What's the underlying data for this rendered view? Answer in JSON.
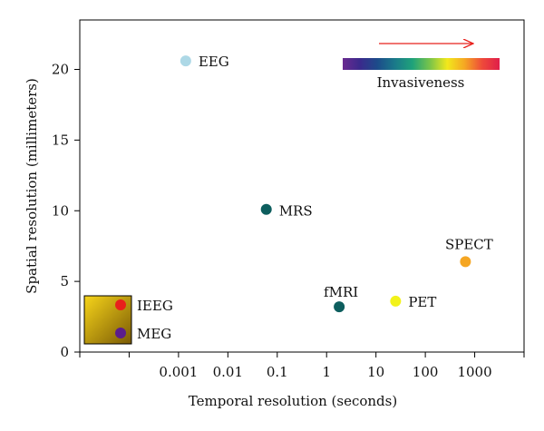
{
  "chart_data": {
    "type": "scatter",
    "title": "",
    "xlabel": "Temporal resolution (seconds)",
    "ylabel": "Spatial resolution (millimeters)",
    "x_scale": "log",
    "x_range": [
      1e-05,
      10000
    ],
    "x_ticks": [
      {
        "value": 0.001,
        "label": "0.001"
      },
      {
        "value": 0.01,
        "label": "0.01"
      },
      {
        "value": 0.1,
        "label": "0.1"
      },
      {
        "value": 1,
        "label": "1"
      },
      {
        "value": 10,
        "label": "10"
      },
      {
        "value": 100,
        "label": "100"
      },
      {
        "value": 1000,
        "label": "1000"
      }
    ],
    "y_range": [
      0,
      23.5
    ],
    "y_ticks": [
      0,
      5,
      10,
      15,
      20
    ],
    "grid": false,
    "points": [
      {
        "name": "EEG",
        "x": 0.0014,
        "y": 20.6,
        "color": "#add8e6"
      },
      {
        "name": "MRS",
        "x": 0.06,
        "y": 10.1,
        "color": "#0d5e5e"
      },
      {
        "name": "fMRI",
        "x": 1.8,
        "y": 3.2,
        "color": "#0d5e5e"
      },
      {
        "name": "PET",
        "x": 25,
        "y": 3.6,
        "color": "#f2f21a"
      },
      {
        "name": "SPECT",
        "x": 650,
        "y": 6.4,
        "color": "#f5a623"
      }
    ],
    "inset_legend": {
      "entries": [
        {
          "name": "IEEG",
          "color": "#e8201c"
        },
        {
          "name": "MEG",
          "color": "#5b1d8c"
        }
      ]
    },
    "colorbar": {
      "title": "Invasiveness",
      "arrow_color": "#e8201c",
      "colors": [
        "#6a2a90",
        "#3a2a8c",
        "#1c4c8a",
        "#1a7a8a",
        "#1fa27a",
        "#79c44a",
        "#f2e81c",
        "#f5a623",
        "#ee4a3a",
        "#e01e4a"
      ]
    }
  }
}
